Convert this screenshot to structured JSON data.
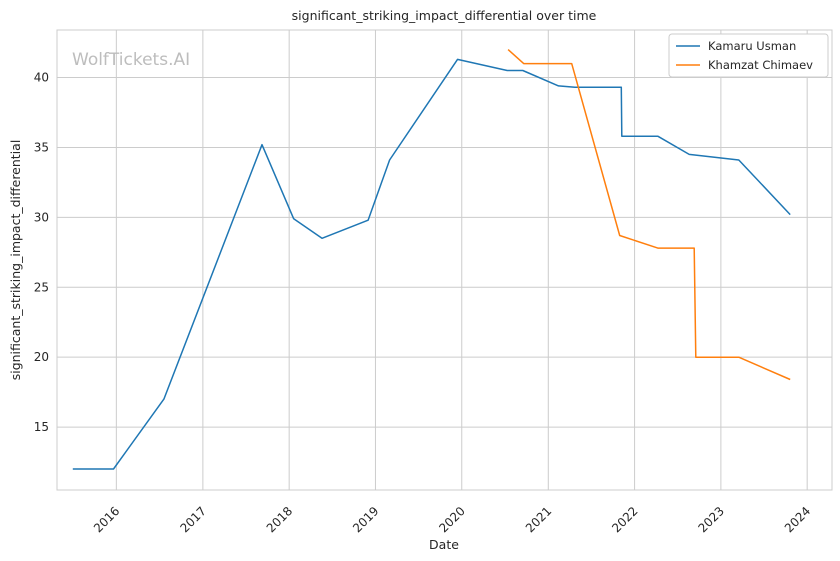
{
  "watermark": "WolfTickets.AI",
  "chart_data": {
    "type": "line",
    "title": "significant_striking_impact_differential over time",
    "xlabel": "Date",
    "ylabel": "significant_striking_impact_differential",
    "x_ticks": [
      "2016",
      "2017",
      "2018",
      "2019",
      "2020",
      "2021",
      "2022",
      "2023",
      "2024"
    ],
    "y_ticks": [
      15,
      20,
      25,
      30,
      35,
      40
    ],
    "xlim": [
      "2015-04-25",
      "2024-04-15"
    ],
    "ylim": [
      10.5,
      43.4
    ],
    "grid": true,
    "legend_position": "top-right",
    "series": [
      {
        "name": "Kamaru Usman",
        "color": "#1f77b4",
        "points": [
          [
            "2015-07-01",
            12.0
          ],
          [
            "2015-12-20",
            12.0
          ],
          [
            "2016-07-20",
            17.0
          ],
          [
            "2017-09-08",
            35.2
          ],
          [
            "2018-01-20",
            29.9
          ],
          [
            "2018-05-20",
            28.5
          ],
          [
            "2018-12-01",
            29.8
          ],
          [
            "2019-03-02",
            34.1
          ],
          [
            "2019-12-14",
            41.3
          ],
          [
            "2020-07-11",
            40.5
          ],
          [
            "2020-09-15",
            40.5
          ],
          [
            "2021-02-13",
            39.4
          ],
          [
            "2021-04-24",
            39.3
          ],
          [
            "2021-11-06",
            39.3
          ],
          [
            "2021-11-08",
            35.8
          ],
          [
            "2022-04-10",
            35.8
          ],
          [
            "2022-08-20",
            34.5
          ],
          [
            "2023-03-18",
            34.1
          ],
          [
            "2023-10-21",
            30.2
          ]
        ]
      },
      {
        "name": "Khamzat Chimaev",
        "color": "#ff7f0e",
        "points": [
          [
            "2020-07-15",
            42.0
          ],
          [
            "2020-09-19",
            41.0
          ],
          [
            "2021-04-10",
            41.0
          ],
          [
            "2021-10-30",
            28.7
          ],
          [
            "2022-04-09",
            27.8
          ],
          [
            "2022-09-10",
            27.8
          ],
          [
            "2022-09-17",
            20.0
          ],
          [
            "2023-03-18",
            20.0
          ],
          [
            "2023-10-21",
            18.4
          ]
        ]
      }
    ]
  }
}
